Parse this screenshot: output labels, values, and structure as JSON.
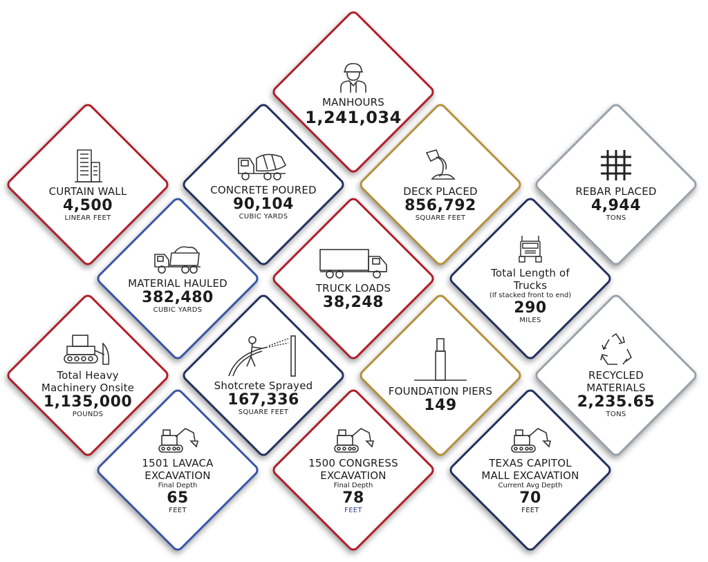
{
  "tiles": {
    "manhours": {
      "label": "MANHOURS",
      "value": "1,241,034",
      "icon": "worker-icon",
      "border_color": "#b01e2a"
    },
    "curtain_wall": {
      "label": "CURTAIN WALL",
      "value": "4,500",
      "unit": "LINEAR FEET",
      "icon": "building-icon",
      "border_color": "#b01e2a"
    },
    "concrete_poured": {
      "label": "CONCRETE POURED",
      "value": "90,104",
      "unit": "CUBIC YARDS",
      "icon": "concrete-mixer-icon",
      "border_color": "#23305f"
    },
    "deck_placed": {
      "label": "DECK PLACED",
      "value": "856,792",
      "unit": "SQUARE FEET",
      "icon": "pour-chute-icon",
      "border_color": "#b4913c"
    },
    "rebar_placed": {
      "label": "REBAR PLACED",
      "value": "4,944",
      "unit": "TONS",
      "icon": "rebar-grid-icon",
      "border_color": "#9aa3ab"
    },
    "material_hauled": {
      "label": "MATERIAL HAULED",
      "value": "382,480",
      "unit": "CUBIC YARDS",
      "icon": "dump-truck-icon",
      "border_color": "#3a55a8"
    },
    "truck_loads": {
      "label": "TRUCK LOADS",
      "value": "38,248",
      "icon": "box-truck-icon",
      "border_color": "#b01e2a"
    },
    "truck_length": {
      "label_line1": "Total Length of",
      "label_line2": "Trucks",
      "sub": "(If stacked front to end)",
      "value": "290",
      "unit": "MILES",
      "icon": "semi-truck-icon",
      "border_color": "#23305f"
    },
    "heavy_machinery": {
      "label_line1": "Total Heavy",
      "label_line2": "Machinery Onsite",
      "value": "1,135,000",
      "unit": "POUNDS",
      "icon": "bulldozer-icon",
      "border_color": "#b01e2a"
    },
    "shotcrete": {
      "label": "Shotcrete Sprayed",
      "value": "167,336",
      "unit": "SQUARE FEET",
      "icon": "spraying-worker-icon",
      "border_color": "#23305f"
    },
    "foundation_piers": {
      "label": "FOUNDATION PIERS",
      "value": "149",
      "icon": "pier-icon",
      "border_color": "#b4913c"
    },
    "recycled": {
      "label_line1": "RECYCLED",
      "label_line2": "MATERIALS",
      "value": "2,235.65",
      "unit": "TONS",
      "icon": "recycle-icon",
      "border_color": "#9aa3ab"
    },
    "lavaca": {
      "label_line1": "1501 LAVACA",
      "label_line2": "EXCAVATION",
      "sub": "Final Depth",
      "value": "65",
      "unit": "FEET",
      "icon": "excavator-icon",
      "border_color": "#3a55a8"
    },
    "congress": {
      "label_line1": "1500 CONGRESS",
      "label_line2": "EXCAVATION",
      "sub": "Final Depth",
      "value": "78",
      "unit": "FEET",
      "icon": "excavator-icon",
      "border_color": "#b01e2a"
    },
    "capitol_mall": {
      "label_line1": "TEXAS CAPITOL",
      "label_line2": "MALL EXCAVATION",
      "sub": "Current Avg Depth",
      "value": "70",
      "unit": "FEET",
      "icon": "excavator-icon",
      "border_color": "#23305f"
    }
  }
}
